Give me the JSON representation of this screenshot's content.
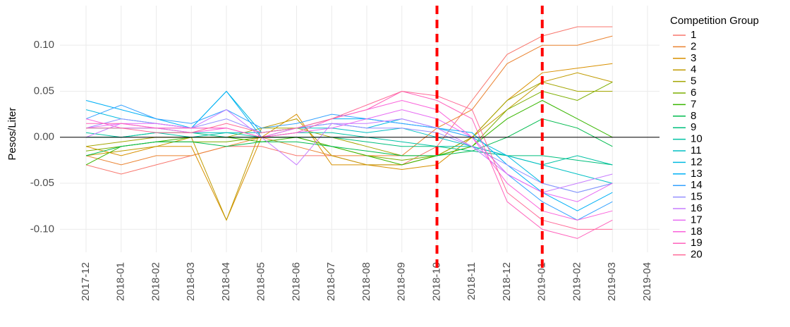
{
  "chart_data": {
    "type": "line",
    "y_label": "Pesos/Liter",
    "legend_title": "Competition Group",
    "x": [
      "2017-12",
      "2018-01",
      "2018-02",
      "2018-03",
      "2018-04",
      "2018-05",
      "2018-06",
      "2018-07",
      "2018-08",
      "2018-09",
      "2018-10",
      "2018-11",
      "2018-12",
      "2019-01",
      "2019-02",
      "2019-03"
    ],
    "xlim": [
      "2017-12",
      "2019-04"
    ],
    "xticks": [
      "2017-12",
      "2018-01",
      "2018-02",
      "2018-03",
      "2018-04",
      "2018-05",
      "2018-06",
      "2018-07",
      "2018-08",
      "2018-09",
      "2018-10",
      "2018-11",
      "2018-12",
      "2019-01",
      "2019-02",
      "2019-03",
      "2019-04"
    ],
    "ylim": [
      -0.125,
      0.143
    ],
    "yticks": [
      {
        "value": -0.1,
        "label": "-0.10"
      },
      {
        "value": -0.05,
        "label": "-0.05"
      },
      {
        "value": 0,
        "label": "0.00"
      },
      {
        "value": 0.05,
        "label": "0.05"
      },
      {
        "value": 0.1,
        "label": "0.10"
      }
    ],
    "grid": true,
    "hline": 0,
    "vlines": [
      "2018-10",
      "2019-01"
    ],
    "vline_color": "#ff0000",
    "legend_position": "right",
    "series": [
      {
        "name": "1",
        "color": "#F8766D",
        "values": [
          -0.03,
          -0.04,
          -0.03,
          -0.02,
          -0.01,
          -0.01,
          -0.02,
          -0.02,
          -0.03,
          -0.03,
          -0.01,
          0.04,
          0.09,
          0.11,
          0.12,
          0.12
        ]
      },
      {
        "name": "2",
        "color": "#EA8331",
        "values": [
          -0.02,
          -0.03,
          -0.02,
          -0.02,
          -0.01,
          0.0,
          -0.01,
          -0.02,
          -0.02,
          -0.02,
          0.01,
          0.03,
          0.08,
          0.1,
          0.1,
          0.11
        ]
      },
      {
        "name": "3",
        "color": "#D89000",
        "values": [
          -0.01,
          -0.02,
          -0.01,
          -0.01,
          -0.09,
          0.0,
          0.025,
          -0.03,
          -0.03,
          -0.035,
          -0.03,
          0.0,
          0.04,
          0.07,
          0.075,
          0.08
        ]
      },
      {
        "name": "4",
        "color": "#C09B00",
        "values": [
          -0.02,
          -0.015,
          -0.01,
          0.0,
          -0.09,
          0.01,
          0.02,
          -0.02,
          -0.03,
          -0.03,
          -0.02,
          0.0,
          0.03,
          0.06,
          0.07,
          0.06
        ]
      },
      {
        "name": "5",
        "color": "#A3A500",
        "values": [
          -0.01,
          -0.005,
          0.0,
          0.0,
          0.0,
          0.01,
          0.01,
          0.0,
          -0.01,
          -0.02,
          -0.02,
          0.0,
          0.04,
          0.06,
          0.05,
          0.05
        ]
      },
      {
        "name": "6",
        "color": "#7CAE00",
        "values": [
          -0.015,
          -0.01,
          -0.005,
          -0.005,
          -0.005,
          0.0,
          0.0,
          -0.01,
          -0.02,
          -0.025,
          -0.02,
          -0.01,
          0.03,
          0.05,
          0.04,
          0.06
        ]
      },
      {
        "name": "7",
        "color": "#39B600",
        "values": [
          -0.03,
          -0.01,
          -0.005,
          0.0,
          0.0,
          -0.005,
          0.0,
          -0.01,
          -0.02,
          -0.03,
          -0.02,
          -0.01,
          0.02,
          0.04,
          0.02,
          0.0
        ]
      },
      {
        "name": "8",
        "color": "#00BB4E",
        "values": [
          -0.02,
          -0.01,
          -0.005,
          -0.005,
          -0.01,
          -0.005,
          -0.005,
          -0.01,
          -0.015,
          -0.02,
          -0.02,
          -0.015,
          0.0,
          0.02,
          0.01,
          -0.01
        ]
      },
      {
        "name": "9",
        "color": "#00BF7D",
        "values": [
          0.0,
          0.0,
          0.005,
          0.005,
          0.0,
          0.0,
          0.0,
          0.0,
          -0.005,
          -0.01,
          -0.01,
          -0.015,
          -0.02,
          -0.02,
          -0.025,
          -0.03
        ]
      },
      {
        "name": "10",
        "color": "#00C1A3",
        "values": [
          0.005,
          0.0,
          0.005,
          0.0,
          0.005,
          0.0,
          0.005,
          0.005,
          0.0,
          -0.005,
          -0.01,
          -0.01,
          -0.02,
          -0.03,
          -0.02,
          -0.03
        ]
      },
      {
        "name": "11",
        "color": "#00BFC4",
        "values": [
          0.01,
          0.01,
          0.01,
          0.005,
          0.005,
          0.005,
          0.01,
          0.01,
          0.005,
          0.01,
          0.0,
          -0.01,
          -0.02,
          -0.03,
          -0.04,
          -0.05
        ]
      },
      {
        "name": "12",
        "color": "#00BAE0",
        "values": [
          0.03,
          0.02,
          0.015,
          0.01,
          0.05,
          0.005,
          0.01,
          0.015,
          0.01,
          0.02,
          0.01,
          0.0,
          -0.02,
          -0.05,
          -0.06,
          -0.05
        ]
      },
      {
        "name": "13",
        "color": "#00B0F6",
        "values": [
          0.04,
          0.03,
          0.02,
          0.01,
          0.05,
          0.0,
          0.01,
          0.02,
          0.02,
          0.015,
          0.01,
          0.005,
          -0.03,
          -0.06,
          -0.08,
          -0.06
        ]
      },
      {
        "name": "14",
        "color": "#35A2FF",
        "values": [
          0.02,
          0.035,
          0.02,
          0.015,
          0.03,
          0.01,
          0.015,
          0.025,
          0.02,
          0.015,
          0.01,
          0.0,
          -0.04,
          -0.07,
          -0.09,
          -0.07
        ]
      },
      {
        "name": "15",
        "color": "#9590FF",
        "values": [
          0.01,
          0.02,
          0.015,
          0.01,
          0.02,
          0.005,
          0.01,
          0.015,
          0.01,
          0.01,
          0.005,
          -0.01,
          -0.03,
          -0.05,
          -0.06,
          -0.05
        ]
      },
      {
        "name": "16",
        "color": "#C77CFF",
        "values": [
          0.0,
          0.015,
          0.01,
          0.01,
          0.03,
          0.0,
          -0.03,
          0.015,
          0.015,
          0.02,
          0.01,
          -0.01,
          -0.04,
          -0.06,
          -0.05,
          -0.04
        ]
      },
      {
        "name": "17",
        "color": "#E76BF3",
        "values": [
          0.01,
          0.015,
          0.015,
          0.01,
          0.01,
          0.0,
          0.005,
          0.01,
          0.02,
          0.03,
          0.02,
          0.0,
          -0.04,
          -0.06,
          -0.07,
          -0.05
        ]
      },
      {
        "name": "18",
        "color": "#FA62DB",
        "values": [
          0.02,
          0.01,
          0.01,
          0.005,
          0.01,
          0.0,
          0.01,
          0.02,
          0.03,
          0.04,
          0.03,
          0.0,
          -0.05,
          -0.08,
          -0.09,
          -0.08
        ]
      },
      {
        "name": "19",
        "color": "#FF62BC",
        "values": [
          0.015,
          0.015,
          0.01,
          0.01,
          0.01,
          0.0,
          0.005,
          0.02,
          0.03,
          0.05,
          0.04,
          0.02,
          -0.07,
          -0.1,
          -0.11,
          -0.09
        ]
      },
      {
        "name": "20",
        "color": "#FF6A98",
        "values": [
          0.01,
          0.01,
          0.005,
          0.005,
          0.015,
          0.005,
          0.01,
          0.02,
          0.035,
          0.05,
          0.045,
          0.03,
          -0.06,
          -0.09,
          -0.1,
          -0.1
        ]
      }
    ]
  }
}
